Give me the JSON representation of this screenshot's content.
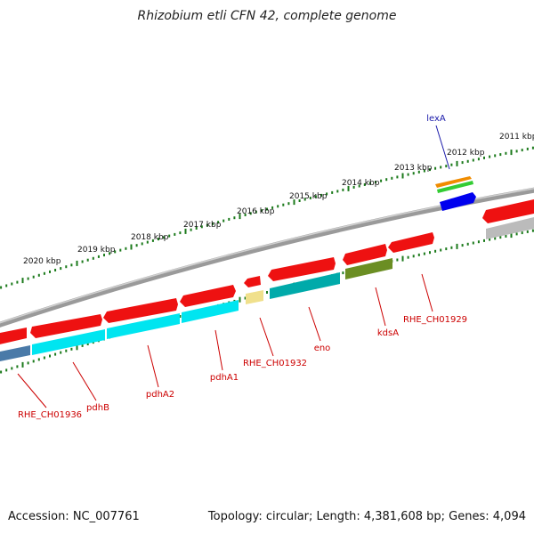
{
  "title": "Rhizobium etli CFN 42, complete genome",
  "footer": {
    "accession": "Accession: NC_007761",
    "summary": "Topology: circular; Length: 4,381,608 bp; Genes: 4,094"
  },
  "colors": {
    "backbone": "#8a8a8a",
    "tick": "#1b7a1b",
    "forward_gene": "#ee1111",
    "reverse_gene": "#00e5f0",
    "label_red": "#cc0000",
    "label_blue": "#1a1aaa",
    "orange_gene": "#f08c00",
    "green_gene": "#33cc33",
    "blue_gene": "#0000ee",
    "olive_gene": "#6b8e23",
    "teal_gene": "#00aaaa",
    "pale_gene": "#f0e08c",
    "steel_gene": "#4a7aa8",
    "grey_gene": "#bbbbbb"
  },
  "outer_ticks": [
    "2020 kbp",
    "2019 kbp",
    "2018 kbp",
    "2017 kbp",
    "2016 kbp",
    "2015 kbp",
    "2014 kbp",
    "2013 kbp",
    "2012 kbp",
    "2011 kbp"
  ],
  "gene_labels": [
    "lexA",
    "RHE_CH01936",
    "pdhB",
    "pdhA2",
    "pdhA1",
    "RHE_CH01932",
    "eno",
    "kdsA",
    "RHE_CH01929"
  ]
}
